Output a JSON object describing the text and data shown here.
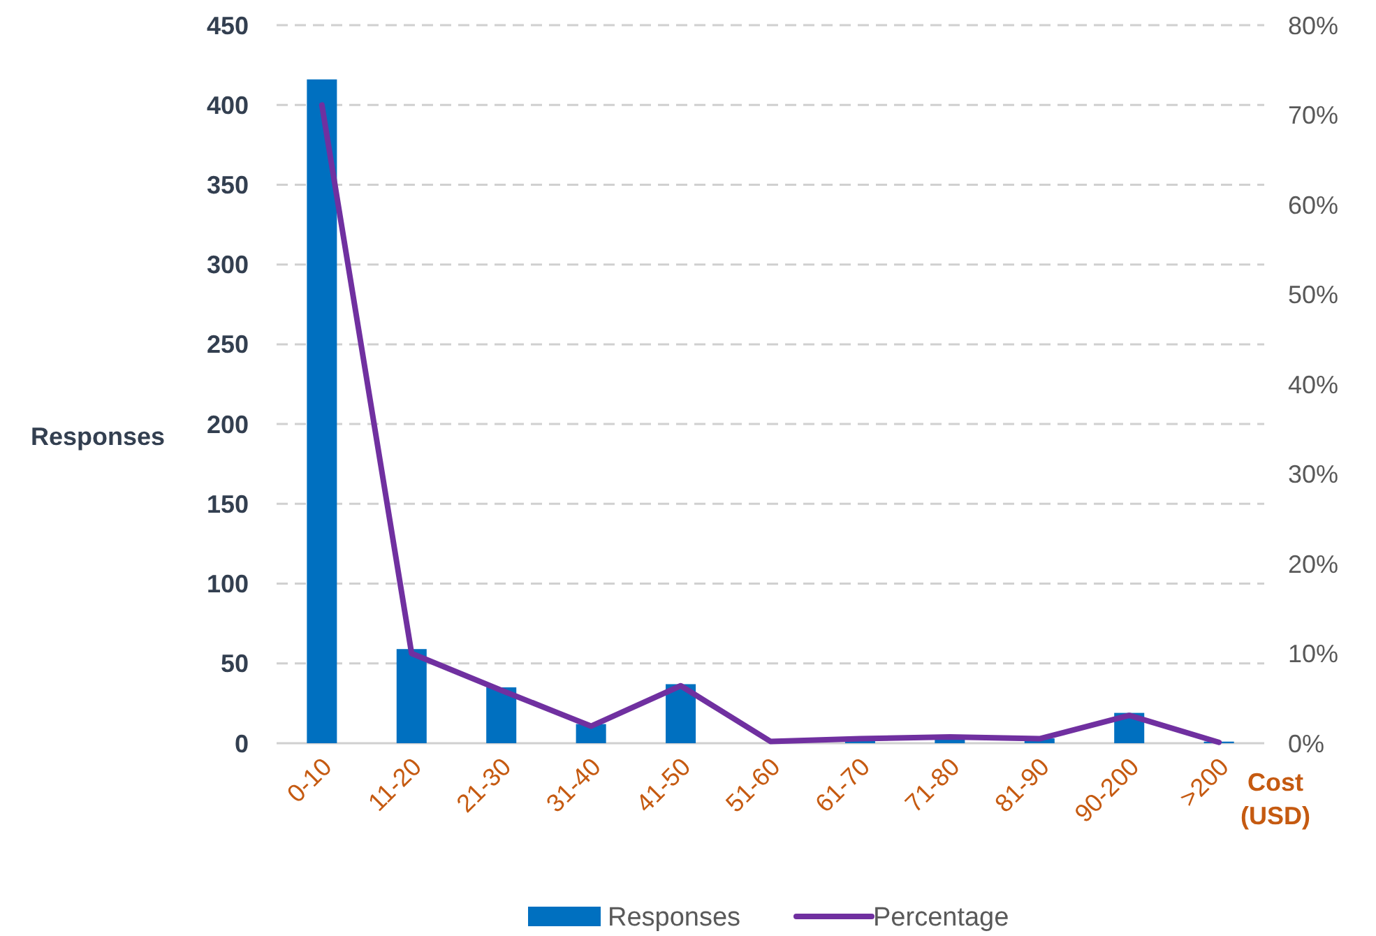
{
  "chart_data": {
    "type": "bar",
    "categories": [
      "0-10",
      "11-20",
      "21-30",
      "31-40",
      "41-50",
      "51-60",
      "61-70",
      "71-80",
      "81-90",
      "90-200",
      ">200"
    ],
    "series": [
      {
        "name": "Responses",
        "color": "#0070c0",
        "values": [
          416,
          59,
          35,
          12,
          37,
          null,
          2,
          3,
          3,
          19,
          1
        ]
      },
      {
        "name": "Percentage",
        "type": "line",
        "axis": "y2",
        "color": "#7030a0",
        "values": [
          71.1,
          10.0,
          5.9,
          1.9,
          6.4,
          0.2,
          0.5,
          0.7,
          0.5,
          3.1,
          0.1
        ]
      }
    ],
    "xlabel": "Cost (USD)",
    "ylabel": "Responses",
    "ylim": [
      0,
      450
    ],
    "yticks": [
      0,
      50,
      100,
      150,
      200,
      250,
      300,
      350,
      400,
      450
    ],
    "y2lim": [
      0,
      80
    ],
    "y2ticks": [
      {
        "value": 0,
        "label": "0%"
      },
      {
        "value": 10,
        "label": "10%"
      },
      {
        "value": 20,
        "label": "20%"
      },
      {
        "value": 30,
        "label": "30%"
      },
      {
        "value": 40,
        "label": "40%"
      },
      {
        "value": 50,
        "label": "50%"
      },
      {
        "value": 60,
        "label": "60%"
      },
      {
        "value": 70,
        "label": "70%"
      },
      {
        "value": 80,
        "label": "80%"
      }
    ],
    "grid": "y",
    "legend": "bottom",
    "marker": "none",
    "line_style": "solid"
  }
}
